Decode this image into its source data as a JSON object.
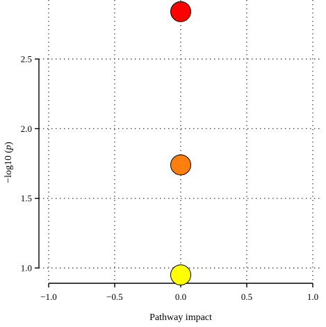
{
  "chart_data": {
    "type": "scatter",
    "title": "",
    "xlabel": "Pathway impact",
    "ylabel_prefix": "−log10 (",
    "ylabel_italic": "p",
    "ylabel_suffix": ")",
    "xlim": [
      -1.0,
      1.0
    ],
    "ylim": [
      0.9,
      2.85
    ],
    "x_ticks": [
      -1.0,
      -0.5,
      0.0,
      0.5,
      1.0
    ],
    "x_tick_labels": [
      "−1.0",
      "−0.5",
      "0.0",
      "0.5",
      "1.0"
    ],
    "y_ticks": [
      1.0,
      1.5,
      2.0,
      2.5
    ],
    "y_tick_labels": [
      "1.0",
      "1.5",
      "2.0",
      "2.5"
    ],
    "grid": true,
    "points": [
      {
        "x": 0.0,
        "y": 2.84,
        "color": "#ff0000"
      },
      {
        "x": 0.0,
        "y": 1.74,
        "color": "#ff7f0e"
      },
      {
        "x": 0.0,
        "y": 0.95,
        "color": "#ffff00"
      }
    ]
  }
}
